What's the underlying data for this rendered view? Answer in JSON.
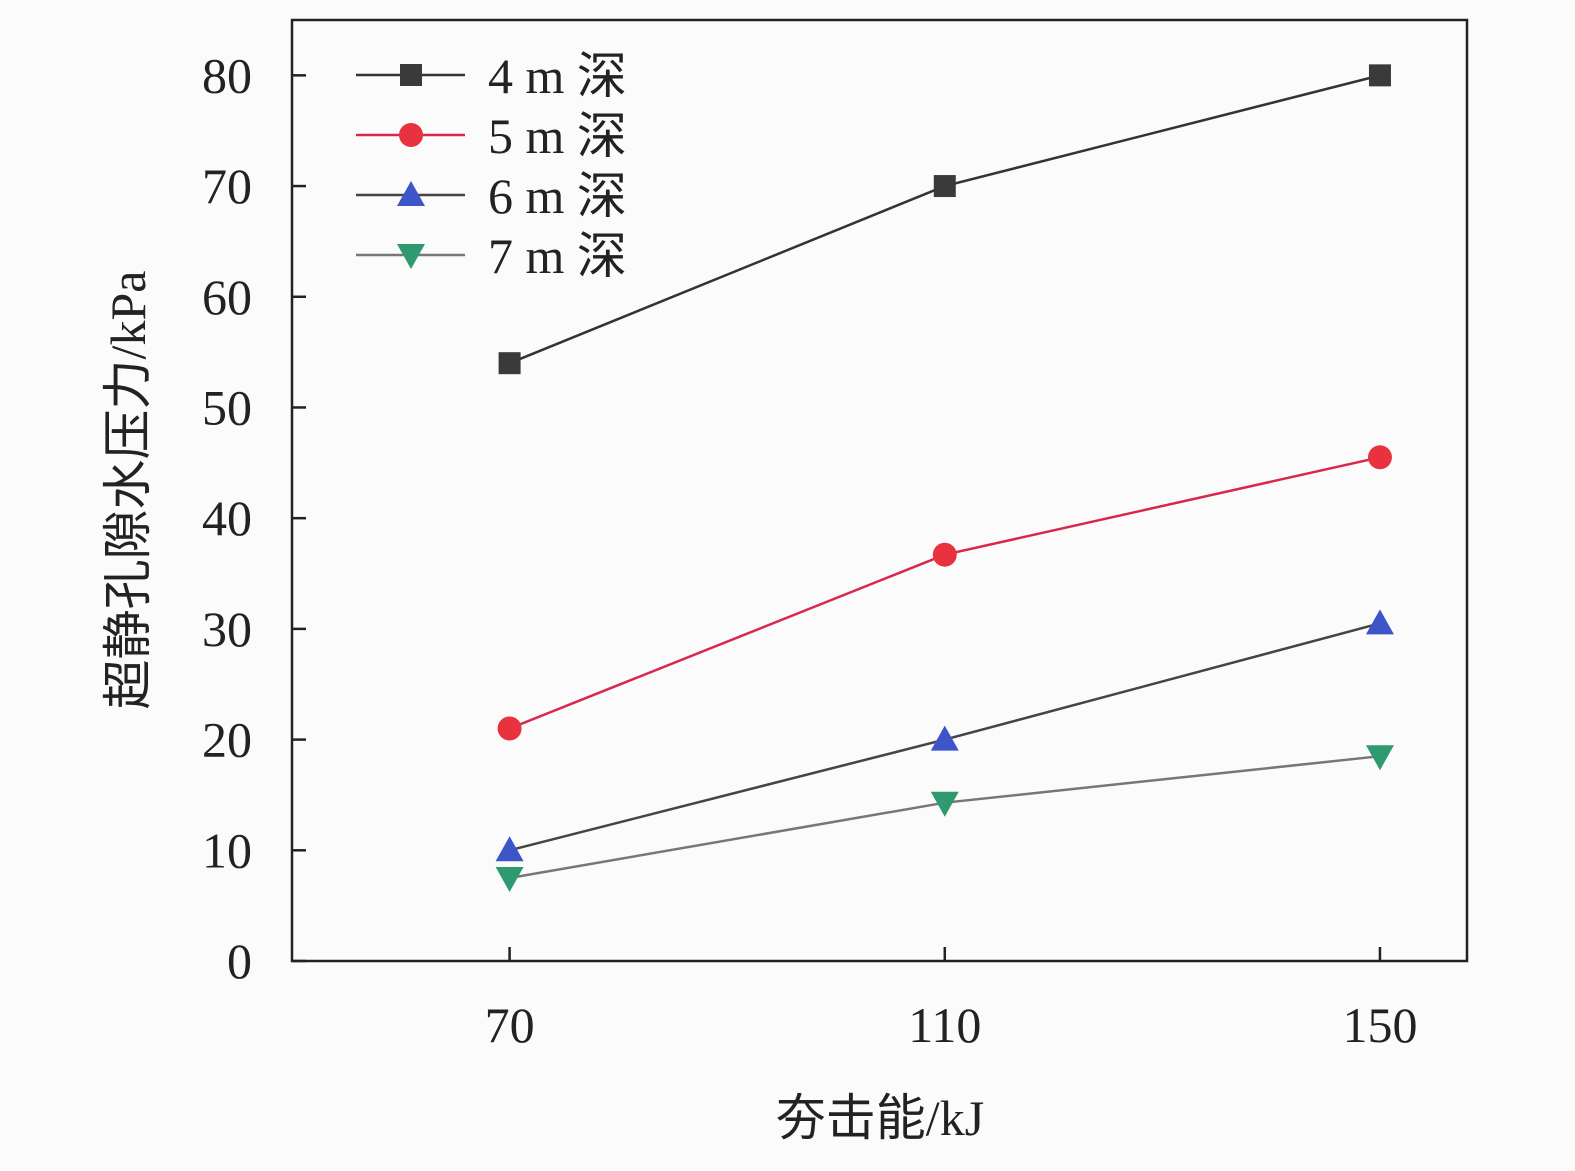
{
  "chart_data": {
    "type": "line",
    "title": "",
    "xlabel": "夯击能/kJ",
    "ylabel": "超静孔隙水压力/kPa",
    "x": [
      70,
      110,
      150
    ],
    "xticks": [
      70,
      110,
      150
    ],
    "xlim": [
      50,
      158
    ],
    "yticks": [
      0,
      10,
      20,
      30,
      40,
      50,
      60,
      70,
      80
    ],
    "ylim": [
      0,
      85
    ],
    "grid": false,
    "legend_position": "top-left",
    "series": [
      {
        "name": "4 m 深",
        "values": [
          54,
          70,
          80
        ],
        "marker": "square",
        "marker_color": "#3a3a3a",
        "line_color": "#333333"
      },
      {
        "name": "5 m 深",
        "values": [
          21,
          36.7,
          45.5
        ],
        "marker": "circle",
        "marker_color": "#e8323f",
        "line_color": "#d8284a"
      },
      {
        "name": "6 m 深",
        "values": [
          10,
          20,
          30.5
        ],
        "marker": "triangle-up",
        "marker_color": "#3d55c8",
        "line_color": "#444444"
      },
      {
        "name": "7 m 深",
        "values": [
          7.5,
          14.3,
          18.5
        ],
        "marker": "triangle-down",
        "marker_color": "#2f9a70",
        "line_color": "#777777"
      }
    ]
  }
}
